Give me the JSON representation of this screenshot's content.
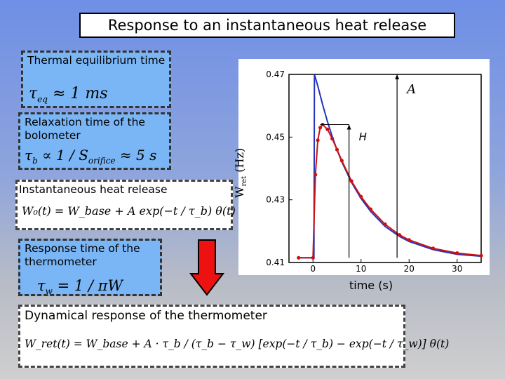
{
  "title": "Response to an instantaneous heat release",
  "panels": {
    "equilibrium": {
      "label": "Thermal equilibrium time",
      "formula_lhs": "τ",
      "formula_sub": "eq",
      "formula_rhs": "≈ 1 ms"
    },
    "relaxation": {
      "label": "Relaxation time of the bolometer",
      "formula_lhs": "τ",
      "formula_sub": "b",
      "formula_mid": "∝ 1 / S",
      "formula_sub2": "orifice",
      "formula_rhs": "≈ 5 s"
    },
    "heat_release": {
      "label": "Instantaneous heat release",
      "formula": "W₀(t) = W_base + A exp(−t / τ_b) θ(t)"
    },
    "thermometer": {
      "label": "Response time of the thermometer",
      "formula_lhs": "τ",
      "formula_sub": "w",
      "formula_rhs": "= 1 / πW"
    },
    "dynamical": {
      "label": "Dynamical response of the thermometer",
      "formula": "W_ret(t) = W_base + A · τ_b / (τ_b − τ_w) [exp(−t / τ_b) − exp(−t / τ_w)] θ(t)"
    }
  },
  "arrow_color": "#ee1111",
  "chart_data": {
    "type": "line",
    "xlabel": "time (s)",
    "ylabel": "W",
    "ylabel_sub": "ret",
    "ylabel_unit": "(Hz)",
    "xlim": [
      -5,
      35
    ],
    "ylim": [
      0.41,
      0.47
    ],
    "xticks": [
      0,
      10,
      20,
      30
    ],
    "yticks": [
      0.41,
      0.43,
      0.45,
      0.47
    ],
    "annotations": [
      "A",
      "H"
    ],
    "series": [
      {
        "color": "#2233bb",
        "x": [
          -3,
          0.2,
          0.3,
          1,
          2,
          3,
          4,
          5,
          6,
          8,
          10,
          12,
          15,
          18,
          20,
          25,
          30,
          35
        ],
        "y": [
          0.4115,
          0.4115,
          0.47,
          0.4663,
          0.4604,
          0.455,
          0.4502,
          0.4459,
          0.4421,
          0.4356,
          0.4304,
          0.4263,
          0.4215,
          0.4183,
          0.4167,
          0.4141,
          0.4126,
          0.412
        ]
      },
      {
        "color": "#cc1111",
        "x": [
          -3,
          0,
          0.5,
          1,
          1.5,
          2,
          3,
          4,
          5,
          6,
          8,
          10,
          12,
          15,
          18,
          20,
          25,
          30,
          35
        ],
        "y": [
          0.4115,
          0.4115,
          0.438,
          0.449,
          0.453,
          0.454,
          0.4525,
          0.4495,
          0.446,
          0.4425,
          0.436,
          0.431,
          0.427,
          0.4222,
          0.4188,
          0.4172,
          0.4145,
          0.413,
          0.4122
        ]
      }
    ]
  }
}
